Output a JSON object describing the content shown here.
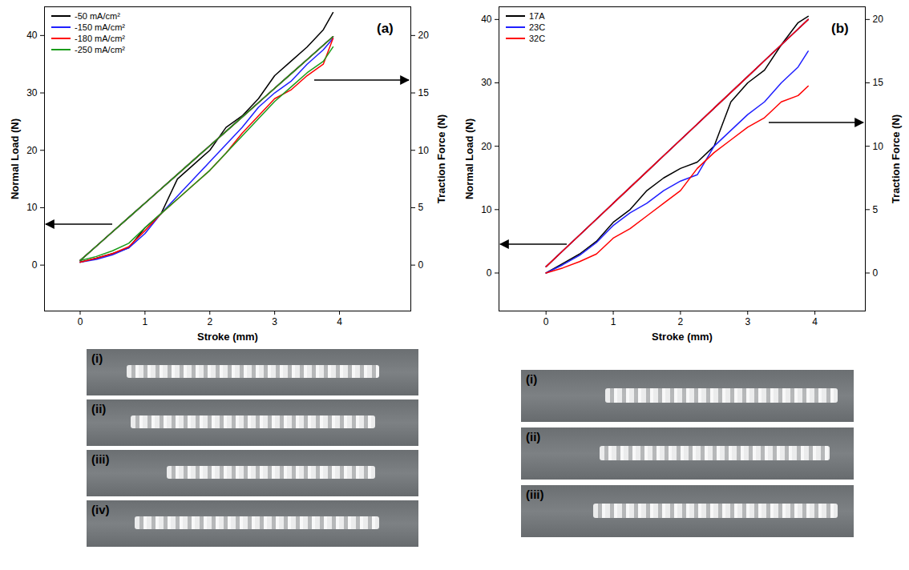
{
  "chart_data": [
    {
      "type": "line",
      "panel_label": "(a)",
      "x_label": "Stroke (mm)",
      "y_label": "Normal Load (N)",
      "y2_label": "Traction Force (N)",
      "x": [
        0,
        0.25,
        0.5,
        0.75,
        1,
        1.25,
        1.5,
        1.75,
        2,
        2.25,
        2.5,
        2.75,
        3,
        3.25,
        3.5,
        3.75,
        3.9
      ],
      "xlim": [
        -0.55,
        5.1
      ],
      "xticks": [
        0,
        1,
        2,
        3,
        4
      ],
      "ylim": [
        -8,
        45
      ],
      "yticks": [
        0,
        10,
        20,
        30,
        40
      ],
      "y2lim": [
        -4,
        22.5
      ],
      "y2ticks": [
        0,
        5,
        10,
        15,
        20
      ],
      "legend": "top-left",
      "series": [
        {
          "name": "-50 mA/cm²",
          "color": "#000000",
          "axis": "y2",
          "values": [
            0.25,
            0.6,
            1,
            1.5,
            3.25,
            4.5,
            7.5,
            8.75,
            10,
            12,
            13,
            14.5,
            16.5,
            17.75,
            19,
            20.5,
            22
          ]
        },
        {
          "name": "-150 mA/cm²",
          "color": "#1f1fff",
          "axis": "y2",
          "values": [
            0.25,
            0.5,
            0.9,
            1.5,
            2.75,
            4.5,
            6,
            7.5,
            9,
            10.5,
            12,
            13.75,
            15,
            16,
            17.5,
            18.75,
            19.75
          ]
        },
        {
          "name": "-180 mA/cm²",
          "color": "#ff0000",
          "axis": "y2",
          "values": [
            0.25,
            0.6,
            1,
            1.6,
            3,
            4.5,
            5.75,
            7,
            8.25,
            9.75,
            11.5,
            13,
            14.5,
            15.25,
            16.5,
            17.5,
            19.75
          ]
        },
        {
          "name": "-250 mA/cm²",
          "color": "#1a9c1a",
          "axis": "y2",
          "values": [
            0.4,
            0.75,
            1.25,
            1.9,
            3.25,
            4.5,
            5.75,
            7,
            8.25,
            9.75,
            11.25,
            12.75,
            14.25,
            15.5,
            16.75,
            17.75,
            19
          ]
        },
        {
          "name": "-50 mA/cm²",
          "color": "#000000",
          "axis": "y",
          "values": [
            0.8,
            3.3,
            5.8,
            8.3,
            10.8,
            13.3,
            15.8,
            18.3,
            20.8,
            23.3,
            25.8,
            28.3,
            30.8,
            33.3,
            35.8,
            38.3,
            39.8
          ]
        },
        {
          "name": "-150 mA/cm²",
          "color": "#1f1fff",
          "axis": "y",
          "values": [
            0.8,
            3.3,
            5.8,
            8.3,
            10.8,
            13.3,
            15.8,
            18.3,
            20.8,
            23.3,
            25.8,
            28.3,
            30.8,
            33.3,
            35.8,
            38.3,
            39.8
          ]
        },
        {
          "name": "-180 mA/cm²",
          "color": "#ff0000",
          "axis": "y",
          "values": [
            0.8,
            3.3,
            5.8,
            8.3,
            10.8,
            13.3,
            15.8,
            18.3,
            20.8,
            23.3,
            25.8,
            28.3,
            30.8,
            33.3,
            35.8,
            38.3,
            39.8
          ]
        },
        {
          "name": "-250 mA/cm²",
          "color": "#1a9c1a",
          "axis": "y",
          "values": [
            0.8,
            3.3,
            5.8,
            8.3,
            10.8,
            13.3,
            15.8,
            18.3,
            20.8,
            23.3,
            25.8,
            28.3,
            30.8,
            33.3,
            35.8,
            38.3,
            39.8
          ]
        }
      ],
      "image_labels": [
        "(i)",
        "(ii)",
        "(iii)",
        "(iv)"
      ]
    },
    {
      "type": "line",
      "panel_label": "(b)",
      "x_label": "Stroke (mm)",
      "y_label": "Normal Load (N)",
      "y2_label": "Traction Force (N)",
      "x": [
        0,
        0.25,
        0.5,
        0.75,
        1,
        1.25,
        1.5,
        1.75,
        2,
        2.25,
        2.5,
        2.75,
        3,
        3.25,
        3.5,
        3.75,
        3.9
      ],
      "xlim": [
        -0.7,
        4.75
      ],
      "xticks": [
        0,
        1,
        2,
        3,
        4
      ],
      "ylim": [
        -6,
        42
      ],
      "yticks": [
        0,
        10,
        20,
        30,
        40
      ],
      "y2lim": [
        -3,
        21
      ],
      "y2ticks": [
        0,
        5,
        10,
        15,
        20
      ],
      "legend": "top-left",
      "series": [
        {
          "name": "17A",
          "color": "#000000",
          "axis": "y2",
          "values": [
            0,
            0.75,
            1.5,
            2.5,
            4,
            5,
            6.5,
            7.5,
            8.25,
            8.75,
            10,
            13.5,
            15,
            16,
            18,
            19.75,
            20.25
          ]
        },
        {
          "name": "23C",
          "color": "#1f1fff",
          "axis": "y2",
          "values": [
            0,
            0.65,
            1.4,
            2.4,
            3.75,
            4.75,
            5.5,
            6.5,
            7.25,
            7.75,
            10,
            11.25,
            12.5,
            13.5,
            15,
            16.25,
            17.5
          ]
        },
        {
          "name": "32C",
          "color": "#ff0000",
          "axis": "y2",
          "values": [
            0,
            0.4,
            0.9,
            1.5,
            2.75,
            3.5,
            4.5,
            5.5,
            6.5,
            8.25,
            9.5,
            10.5,
            11.5,
            12.25,
            13.5,
            14,
            14.75
          ]
        },
        {
          "name": "17A",
          "color": "#000000",
          "axis": "y",
          "values": [
            1,
            3.5,
            6,
            8.5,
            11,
            13.5,
            16,
            18.5,
            21,
            23.5,
            26,
            28.5,
            31,
            33.5,
            36,
            38.5,
            40
          ]
        },
        {
          "name": "23C",
          "color": "#1f1fff",
          "axis": "y",
          "values": [
            1,
            3.5,
            6,
            8.5,
            11,
            13.5,
            16,
            18.5,
            21,
            23.5,
            26,
            28.5,
            31,
            33.5,
            36,
            38.5,
            40
          ]
        },
        {
          "name": "32C",
          "color": "#ff0000",
          "axis": "y",
          "values": [
            1,
            3.5,
            6,
            8.5,
            11,
            13.5,
            16,
            18.5,
            21,
            23.5,
            26,
            28.5,
            31,
            33.5,
            36,
            38.5,
            40
          ]
        }
      ],
      "image_labels": [
        "(i)",
        "(ii)",
        "(iii)"
      ]
    }
  ]
}
